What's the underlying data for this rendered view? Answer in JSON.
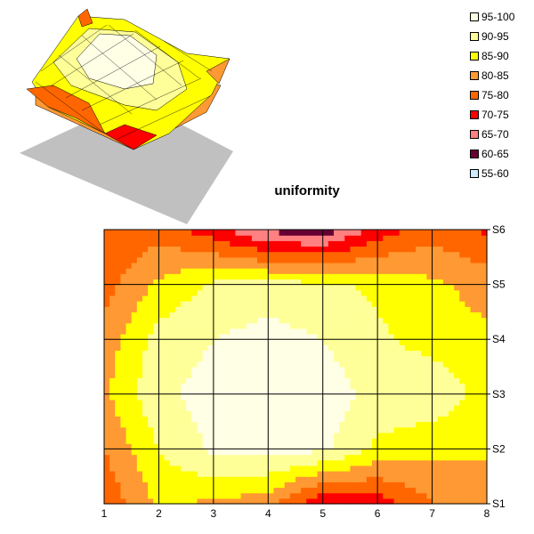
{
  "chart_data": {
    "type": "heatmap",
    "title": "uniformity",
    "x": [
      1,
      2,
      3,
      4,
      5,
      6,
      7,
      8
    ],
    "series_labels": [
      "S1",
      "S2",
      "S3",
      "S4",
      "S5",
      "S6"
    ],
    "z": [
      [
        76,
        86,
        84,
        82,
        70,
        72,
        80,
        80
      ],
      [
        80,
        90,
        96,
        97,
        96,
        89,
        86,
        86
      ],
      [
        84,
        94,
        97,
        99,
        98,
        93,
        94,
        88
      ],
      [
        82,
        92,
        95,
        97,
        95,
        91,
        88,
        86
      ],
      [
        78,
        86,
        91,
        92,
        91,
        89,
        86,
        83
      ],
      [
        75,
        78,
        72,
        64,
        62,
        72,
        78,
        74
      ]
    ],
    "legend": [
      {
        "label": "95-100",
        "color": "#ffffe6"
      },
      {
        "label": "90-95",
        "color": "#ffff99"
      },
      {
        "label": "85-90",
        "color": "#ffff00"
      },
      {
        "label": "80-85",
        "color": "#ff9933"
      },
      {
        "label": "75-80",
        "color": "#ff6600"
      },
      {
        "label": "70-75",
        "color": "#ff0000"
      },
      {
        "label": "65-70",
        "color": "#ff8080"
      },
      {
        "label": "60-65",
        "color": "#660033"
      },
      {
        "label": "55-60",
        "color": "#ccecff"
      }
    ],
    "legend_position": "top-right",
    "grid": true
  }
}
